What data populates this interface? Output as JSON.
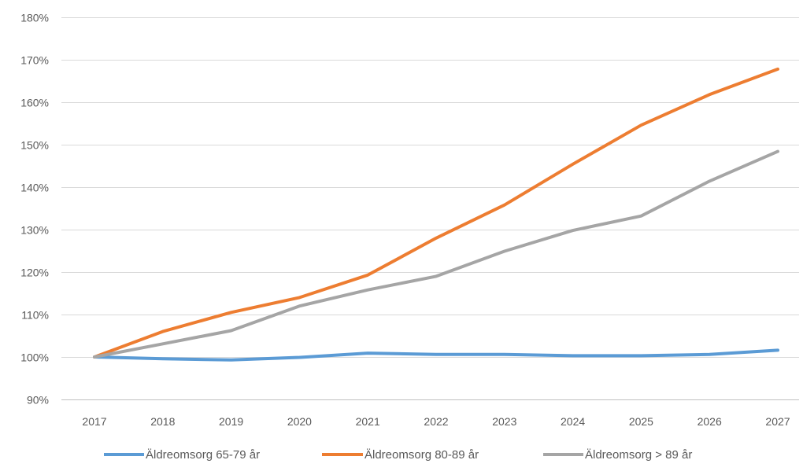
{
  "chart_data": {
    "type": "line",
    "title": "",
    "xlabel": "",
    "ylabel": "",
    "x": [
      "2017",
      "2018",
      "2019",
      "2020",
      "2021",
      "2022",
      "2023",
      "2024",
      "2025",
      "2026",
      "2027"
    ],
    "ylim": [
      90,
      180
    ],
    "yticks": [
      90,
      100,
      110,
      120,
      130,
      140,
      150,
      160,
      170,
      180
    ],
    "ytick_labels": [
      "90%",
      "100%",
      "110%",
      "120%",
      "130%",
      "140%",
      "150%",
      "160%",
      "170%",
      "180%"
    ],
    "grid": "horizontal",
    "legend_position": "bottom",
    "series": [
      {
        "name": "Äldreomsorg 65-79 år",
        "color": "#5B9BD5",
        "values": [
          100,
          99.6,
          99.3,
          99.9,
          100.9,
          100.6,
          100.6,
          100.3,
          100.3,
          100.6,
          101.6
        ]
      },
      {
        "name": "Äldreomsorg 80-89 år",
        "color": "#ED7D31",
        "values": [
          100,
          106,
          110.5,
          114,
          119.3,
          128,
          135.8,
          145.4,
          154.6,
          161.8,
          167.8
        ]
      },
      {
        "name": "Äldreomsorg > 89 år",
        "color": "#A5A5A5",
        "values": [
          100,
          103.1,
          106.2,
          112,
          115.8,
          119,
          124.9,
          129.8,
          133.2,
          141.4,
          148.4
        ]
      }
    ]
  }
}
